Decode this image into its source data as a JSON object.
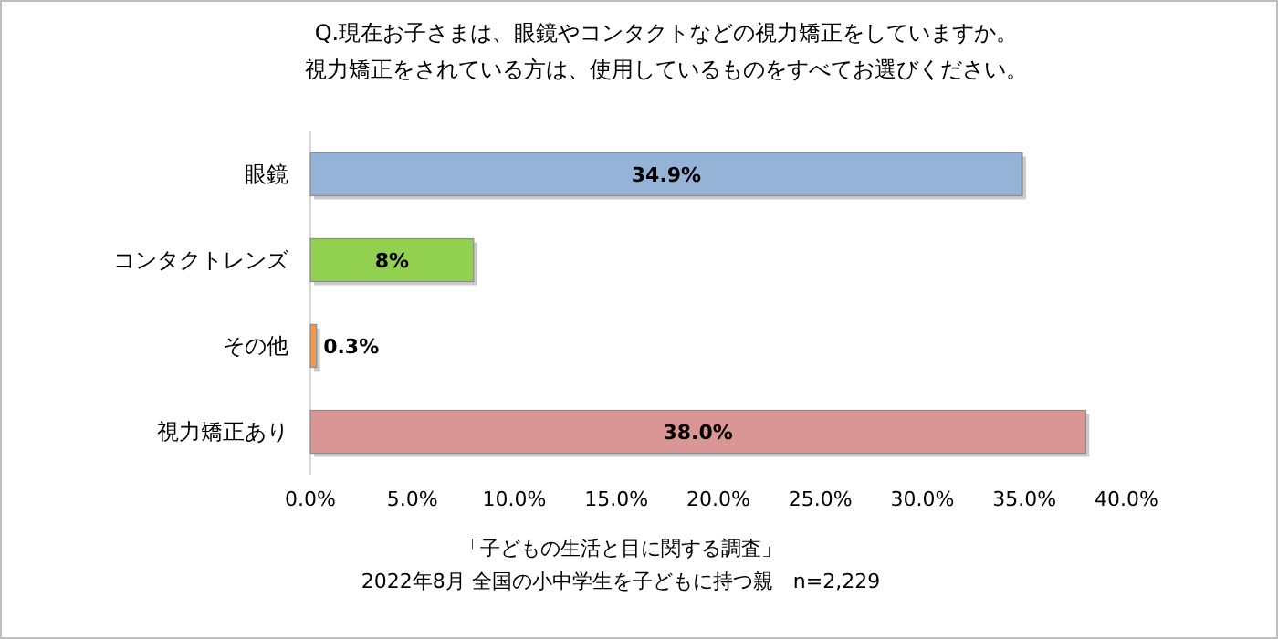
{
  "chart_data": {
    "type": "bar",
    "orientation": "horizontal",
    "title": "Q.現在お子さまは、眼鏡やコンタクトなどの視力矯正をしていますか。",
    "subtitle": "視力矯正をされている方は、使用しているものをすべてお選びください。",
    "categories": [
      "眼鏡",
      "コンタクトレンズ",
      "その他",
      "視力矯正あり"
    ],
    "values": [
      34.9,
      8,
      0.3,
      38.0
    ],
    "colors": [
      "#95b3d7",
      "#92d050",
      "#f79646",
      "#d99694"
    ],
    "value_labels": [
      "34.9%",
      "8%",
      "0.3%",
      "38.0%"
    ],
    "xlim": [
      0,
      40
    ],
    "xticks": [
      {
        "value": 0,
        "label": "0.0%"
      },
      {
        "value": 5,
        "label": "5.0%"
      },
      {
        "value": 10,
        "label": "10.0%"
      },
      {
        "value": 15,
        "label": "15.0%"
      },
      {
        "value": 20,
        "label": "20.0%"
      },
      {
        "value": 25,
        "label": "25.0%"
      },
      {
        "value": 30,
        "label": "30.0%"
      },
      {
        "value": 35,
        "label": "35.0%"
      },
      {
        "value": 40,
        "label": "40.0%"
      }
    ],
    "annotations": [
      "「子どもの生活と目に関する調査」",
      "2022年8月 全国の小中学生を子どもに持つ親　n=2,229"
    ]
  }
}
